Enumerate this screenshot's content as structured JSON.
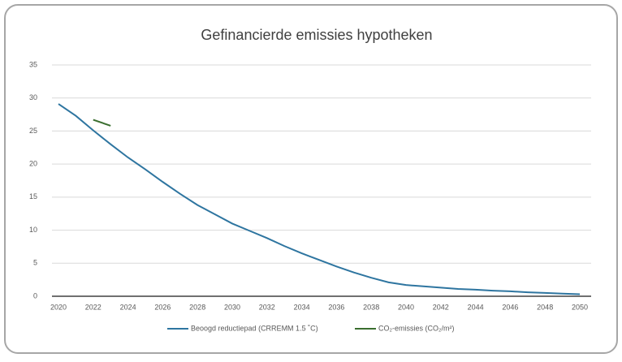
{
  "chart_data": {
    "type": "line",
    "title": "Gefinancierde emissies hypotheken",
    "x": [
      2020,
      2021,
      2022,
      2023,
      2024,
      2025,
      2026,
      2027,
      2028,
      2029,
      2030,
      2031,
      2032,
      2033,
      2034,
      2035,
      2036,
      2037,
      2038,
      2039,
      2040,
      2041,
      2042,
      2043,
      2044,
      2045,
      2046,
      2047,
      2048,
      2049,
      2050
    ],
    "series": [
      {
        "name": "Beoogd reductiepad (CRREMM 1.5 ˚C)",
        "color": "#2e75a0",
        "values": [
          29.1,
          27.3,
          25.1,
          23.0,
          21.0,
          19.2,
          17.3,
          15.5,
          13.8,
          12.4,
          11.0,
          9.9,
          8.8,
          7.6,
          6.5,
          5.5,
          4.5,
          3.6,
          2.8,
          2.1,
          1.7,
          1.5,
          1.3,
          1.1,
          1.0,
          0.85,
          0.75,
          0.6,
          0.5,
          0.4,
          0.3
        ]
      },
      {
        "name": "CO₂-emissies (CO₂/m²)",
        "color": "#3a6e2f",
        "values": [
          null,
          null,
          26.7,
          25.8,
          null,
          null,
          null,
          null,
          null,
          null,
          null,
          null,
          null,
          null,
          null,
          null,
          null,
          null,
          null,
          null,
          null,
          null,
          null,
          null,
          null,
          null,
          null,
          null,
          null,
          null,
          null
        ]
      }
    ],
    "xlim": [
      2020,
      2050
    ],
    "xticks": [
      2020,
      2022,
      2024,
      2026,
      2028,
      2030,
      2032,
      2034,
      2036,
      2038,
      2040,
      2042,
      2044,
      2046,
      2048,
      2050
    ],
    "ylim": [
      0,
      35
    ],
    "yticks": [
      0,
      5,
      10,
      15,
      20,
      25,
      30,
      35
    ],
    "grid": true,
    "legend": "bottom"
  }
}
